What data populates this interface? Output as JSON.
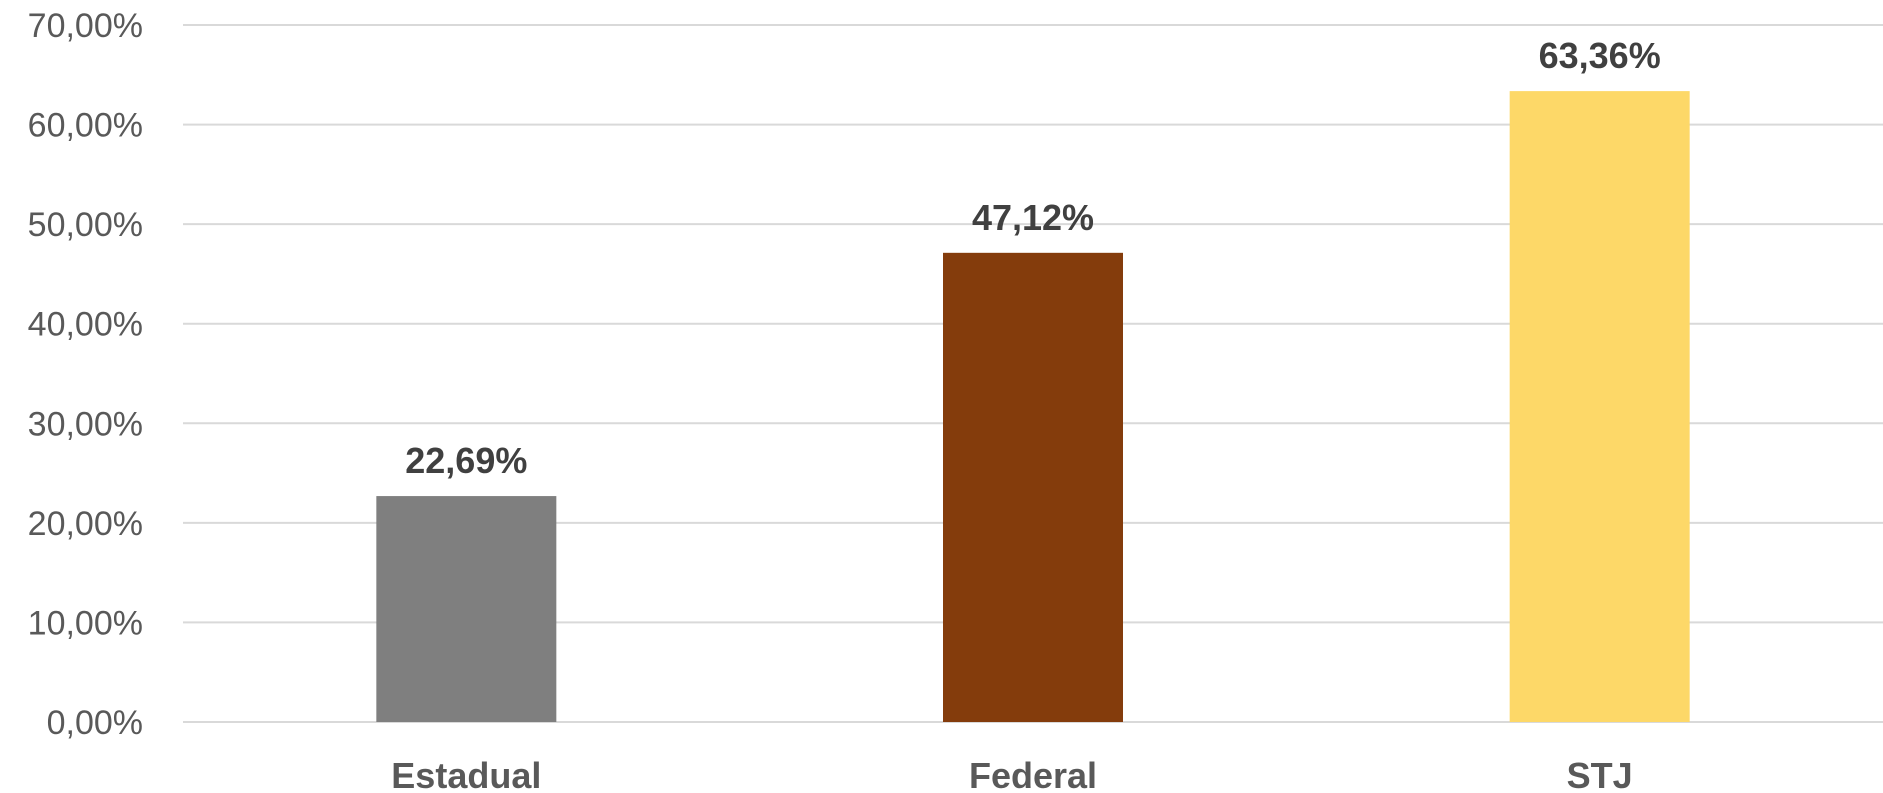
{
  "chart_data": {
    "type": "bar",
    "categories": [
      "Estadual",
      "Federal",
      "STJ"
    ],
    "values": [
      22.69,
      47.12,
      63.36
    ],
    "data_labels": [
      "22,69%",
      "47,12%",
      "63,36%"
    ],
    "colors": [
      "#7f7f7f",
      "#843c0c",
      "#fdd868"
    ],
    "ylim": [
      0,
      70
    ],
    "y_ticks": [
      0,
      10,
      20,
      30,
      40,
      50,
      60,
      70
    ],
    "y_tick_labels": [
      "0,00%",
      "10,00%",
      "20,00%",
      "30,00%",
      "40,00%",
      "50,00%",
      "60,00%",
      "70,00%"
    ],
    "title": "",
    "xlabel": "",
    "ylabel": "",
    "grid": true,
    "legend": "none"
  }
}
